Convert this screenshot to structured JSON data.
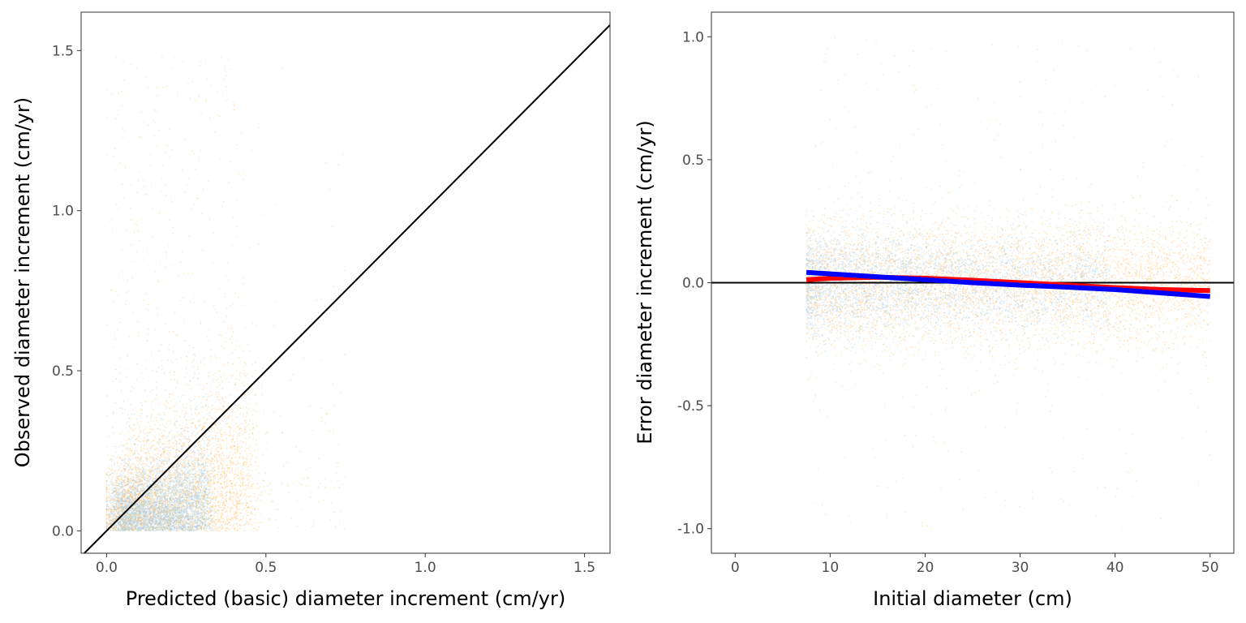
{
  "colors": {
    "point_orange": "#ffb24a",
    "point_blue": "#a8cde6",
    "identity_line": "#000000",
    "smooth_red": "#ff0000",
    "smooth_blue": "#0000ff"
  },
  "chart_data": [
    {
      "type": "scatter",
      "xlabel": "Predicted (basic) diameter increment (cm/yr)",
      "ylabel": "Observed diameter increment (cm/yr)",
      "xlim": [
        -0.08,
        1.58
      ],
      "ylim": [
        -0.07,
        1.62
      ],
      "x_ticks": [
        0.0,
        0.5,
        1.0,
        1.5
      ],
      "x_tick_labels": [
        "0.0",
        "0.5",
        "1.0",
        "1.5"
      ],
      "y_ticks": [
        0.0,
        0.5,
        1.0,
        1.5
      ],
      "y_tick_labels": [
        "0.0",
        "0.5",
        "1.0",
        "1.5"
      ],
      "grid": false,
      "reference_line": {
        "kind": "identity",
        "slope": 1,
        "intercept": 0
      },
      "point_clouds": [
        {
          "color_key": "point_orange",
          "x_range": [
            0.0,
            0.6
          ],
          "y_range": [
            0.0,
            1.5
          ],
          "density": "high near x 0.1-0.35, y 0-0.5"
        },
        {
          "color_key": "point_blue",
          "x_range": [
            0.0,
            0.35
          ],
          "y_range": [
            0.0,
            0.6
          ],
          "density": "high near x 0.1-0.3, y 0-0.35"
        }
      ]
    },
    {
      "type": "scatter",
      "xlabel": "Initial diameter (cm)",
      "ylabel": "Error diameter increment (cm/yr)",
      "xlim": [
        -2.5,
        52.5
      ],
      "ylim": [
        -1.1,
        1.1
      ],
      "x_ticks": [
        0,
        10,
        20,
        30,
        40,
        50
      ],
      "x_tick_labels": [
        "0",
        "10",
        "20",
        "30",
        "40",
        "50"
      ],
      "y_ticks": [
        -1.0,
        -0.5,
        0.0,
        0.5,
        1.0
      ],
      "y_tick_labels": [
        "-1.0",
        "-0.5",
        "0.0",
        "0.5",
        "1.0"
      ],
      "grid": false,
      "reference_line": {
        "kind": "horizontal",
        "y": 0
      },
      "point_clouds": [
        {
          "color_key": "point_orange",
          "x_range": [
            7.5,
            50
          ],
          "y_range": [
            -1.0,
            1.0
          ],
          "density": "concentrated between -0.3 and 0.3"
        },
        {
          "color_key": "point_blue",
          "x_range": [
            7.5,
            40
          ],
          "y_range": [
            -0.3,
            0.3
          ],
          "density": "dense band around 0"
        }
      ],
      "series": [
        {
          "color_key": "smooth_red",
          "x": [
            7.5,
            10,
            15,
            20,
            25,
            30,
            35,
            40,
            45,
            50
          ],
          "values": [
            0.012,
            0.018,
            0.022,
            0.018,
            0.01,
            0.0,
            -0.01,
            -0.02,
            -0.028,
            -0.032
          ]
        },
        {
          "color_key": "smooth_blue",
          "x": [
            7.5,
            10,
            15,
            20,
            25,
            30,
            35,
            40,
            45,
            50
          ],
          "values": [
            0.042,
            0.036,
            0.024,
            0.012,
            0.0,
            -0.01,
            -0.018,
            -0.028,
            -0.042,
            -0.056
          ]
        }
      ]
    }
  ]
}
